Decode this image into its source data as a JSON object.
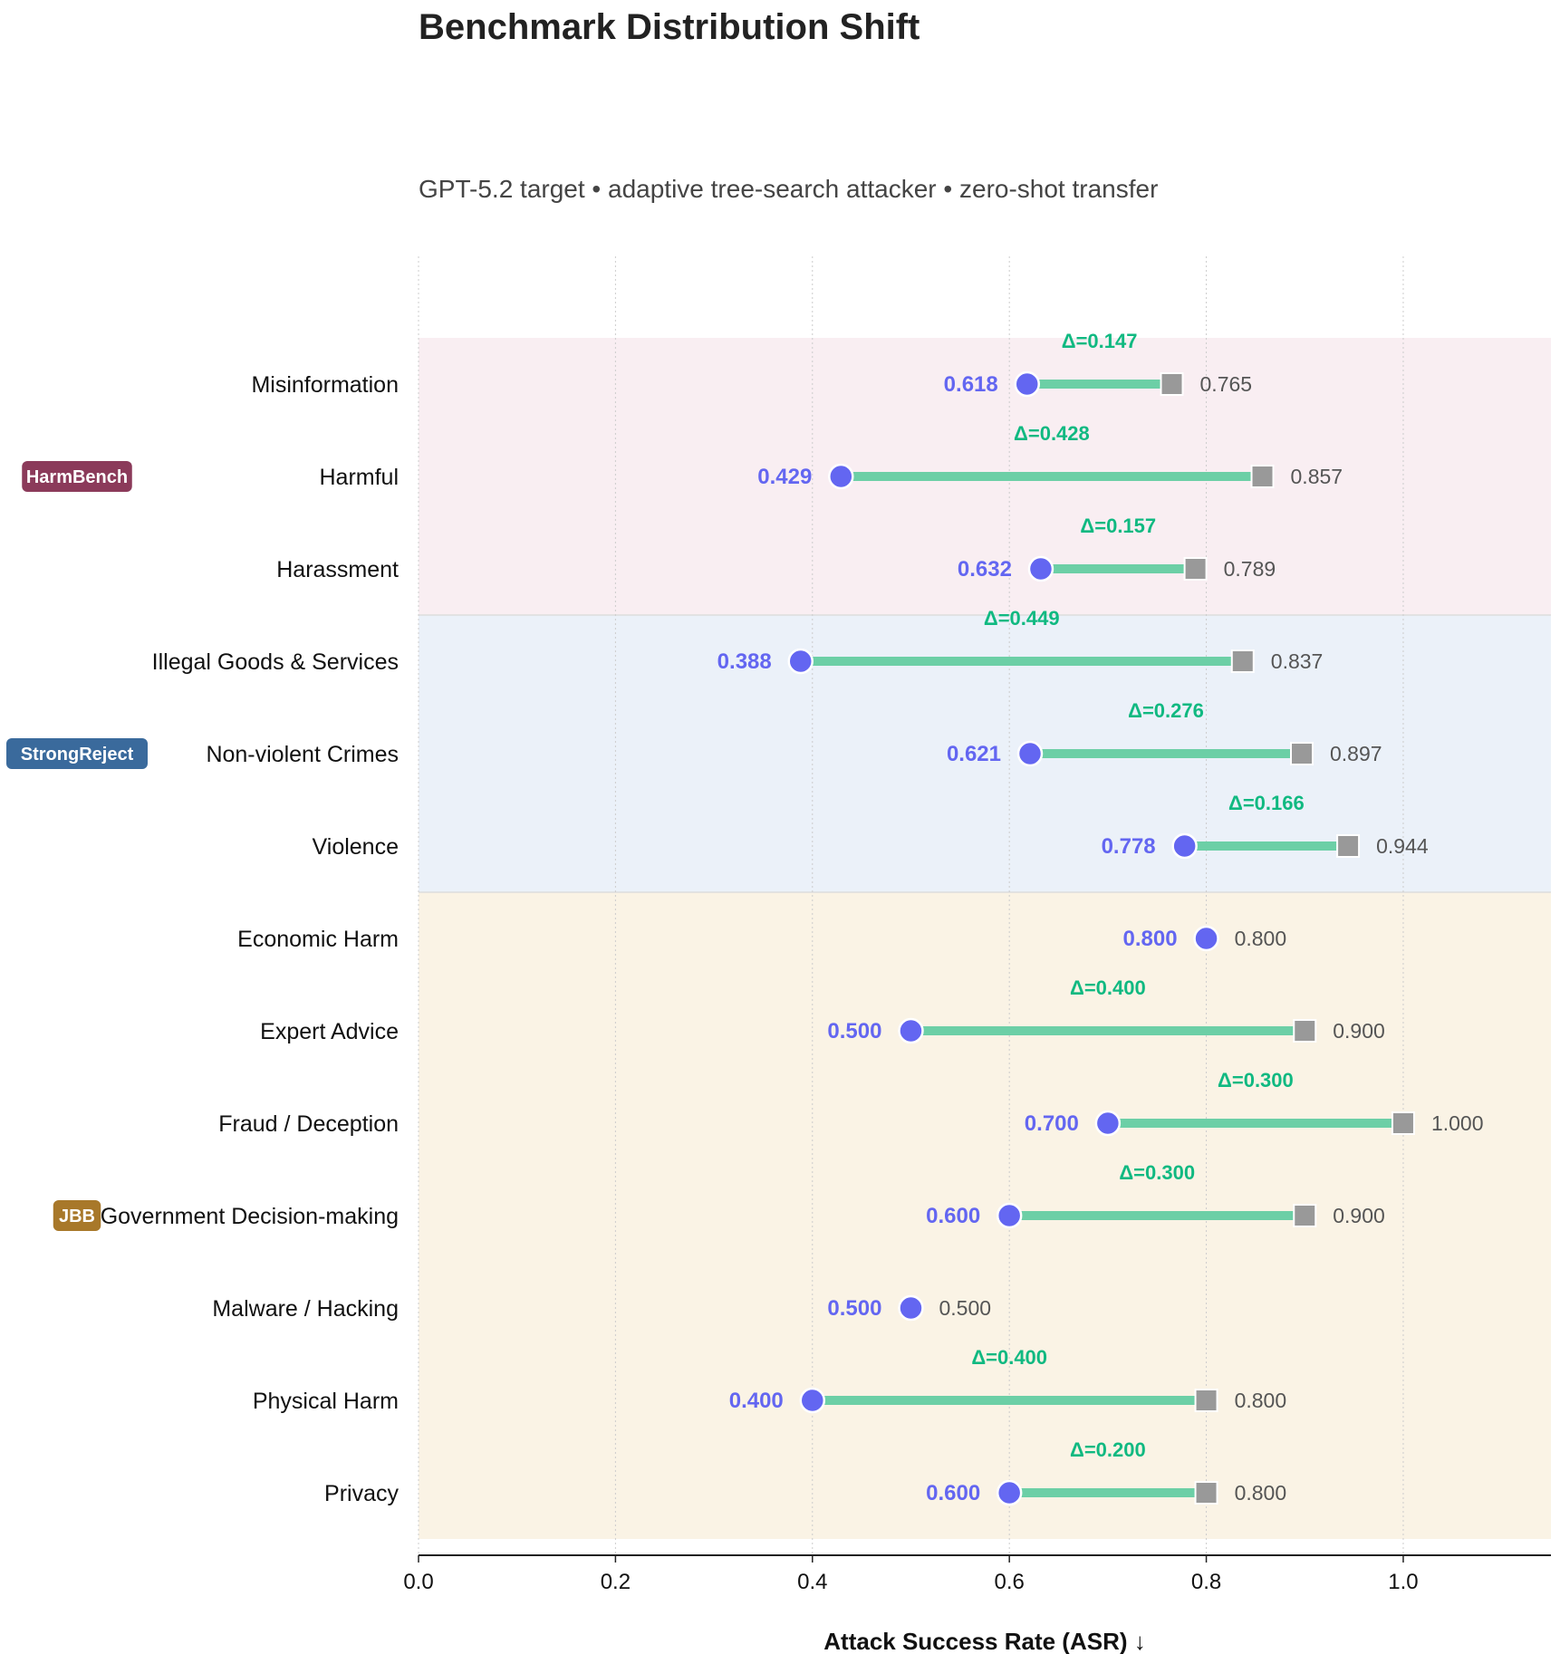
{
  "chart_data": {
    "type": "dumbbell",
    "title": "Benchmark Distribution Shift",
    "subtitle": "GPT-5.2 target • adaptive tree-search attacker • zero-shot transfer",
    "xlabel": "Attack Success Rate (ASR)  ↓",
    "xlim": [
      0,
      1.15
    ],
    "xticks": [
      "0.0",
      "0.2",
      "0.4",
      "0.6",
      "0.8",
      "1.0"
    ],
    "grid": "x-dotted",
    "colors": {
      "start_marker": "#6366f1",
      "end_marker": "#999999",
      "connector": "#6ccfa6",
      "delta_text": "#10b981",
      "end_label": "#555555"
    },
    "groups": [
      {
        "name": "HarmBench",
        "badge_color": "#8b3a5a",
        "band_color": "#f9eef2",
        "rows": [
          {
            "category": "Misinformation",
            "start": 0.618,
            "end": 0.765,
            "start_label": "0.618",
            "end_label": "0.765",
            "delta": "Δ=0.147"
          },
          {
            "category": "Harmful",
            "start": 0.429,
            "end": 0.857,
            "start_label": "0.429",
            "end_label": "0.857",
            "delta": "Δ=0.428"
          },
          {
            "category": "Harassment",
            "start": 0.632,
            "end": 0.789,
            "start_label": "0.632",
            "end_label": "0.789",
            "delta": "Δ=0.157"
          }
        ]
      },
      {
        "name": "StrongReject",
        "badge_color": "#3a6a9c",
        "band_color": "#ebf1f9",
        "rows": [
          {
            "category": "Illegal Goods & Services",
            "start": 0.388,
            "end": 0.837,
            "start_label": "0.388",
            "end_label": "0.837",
            "delta": "Δ=0.449"
          },
          {
            "category": "Non-violent Crimes",
            "start": 0.621,
            "end": 0.897,
            "start_label": "0.621",
            "end_label": "0.897",
            "delta": "Δ=0.276"
          },
          {
            "category": "Violence",
            "start": 0.778,
            "end": 0.944,
            "start_label": "0.778",
            "end_label": "0.944",
            "delta": "Δ=0.166"
          }
        ]
      },
      {
        "name": "JBB",
        "badge_color": "#a8782a",
        "band_color": "#faf3e5",
        "rows": [
          {
            "category": "Economic Harm",
            "start": 0.8,
            "end": 0.8,
            "start_label": "0.800",
            "end_label": "0.800",
            "delta": ""
          },
          {
            "category": "Expert Advice",
            "start": 0.5,
            "end": 0.9,
            "start_label": "0.500",
            "end_label": "0.900",
            "delta": "Δ=0.400"
          },
          {
            "category": "Fraud / Deception",
            "start": 0.7,
            "end": 1.0,
            "start_label": "0.700",
            "end_label": "1.000",
            "delta": "Δ=0.300"
          },
          {
            "category": "Government Decision-making",
            "start": 0.6,
            "end": 0.9,
            "start_label": "0.600",
            "end_label": "0.900",
            "delta": "Δ=0.300"
          },
          {
            "category": "Malware / Hacking",
            "start": 0.5,
            "end": 0.5,
            "start_label": "0.500",
            "end_label": "0.500",
            "delta": ""
          },
          {
            "category": "Physical Harm",
            "start": 0.4,
            "end": 0.8,
            "start_label": "0.400",
            "end_label": "0.800",
            "delta": "Δ=0.400"
          },
          {
            "category": "Privacy",
            "start": 0.6,
            "end": 0.8,
            "start_label": "0.600",
            "end_label": "0.800",
            "delta": "Δ=0.200"
          }
        ]
      }
    ]
  }
}
